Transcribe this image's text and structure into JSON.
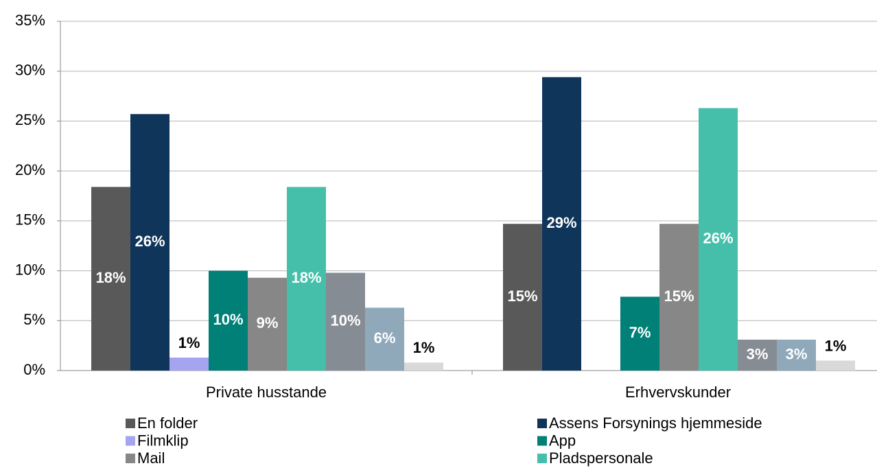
{
  "chart_data": {
    "type": "bar",
    "categories": [
      "Private husstande",
      "Erhvervskunder"
    ],
    "ylim": [
      0,
      35
    ],
    "yticks": [
      {
        "value": 0,
        "label": "0%"
      },
      {
        "value": 5,
        "label": "5%"
      },
      {
        "value": 10,
        "label": "10%"
      },
      {
        "value": 15,
        "label": "15%"
      },
      {
        "value": 20,
        "label": "20%"
      },
      {
        "value": 25,
        "label": "25%"
      },
      {
        "value": 30,
        "label": "30%"
      },
      {
        "value": 35,
        "label": "35%"
      }
    ],
    "grid": true,
    "series": [
      {
        "name": "En folder",
        "color": "#595959",
        "values": [
          18.4,
          14.7
        ],
        "value_labels": [
          "18%",
          "15%"
        ]
      },
      {
        "name": "Assens Forsynings hjemmeside",
        "color": "#10355a",
        "values": [
          25.7,
          29.4
        ],
        "value_labels": [
          "26%",
          "29%"
        ]
      },
      {
        "name": "Filmklip",
        "color": "#a4a4f0",
        "values": [
          1.3,
          null
        ],
        "value_labels": [
          "1%",
          null
        ]
      },
      {
        "name": "App",
        "color": "#008077",
        "values": [
          10,
          7.4
        ],
        "value_labels": [
          "10%",
          "7%"
        ]
      },
      {
        "name": "Mail",
        "color": "#878787",
        "values": [
          9.3,
          14.7
        ],
        "value_labels": [
          "9%",
          "15%"
        ]
      },
      {
        "name": "Pladspersonale",
        "color": "#45bfaa",
        "values": [
          18.4,
          26.3
        ],
        "value_labels": [
          "18%",
          "26%"
        ]
      },
      {
        "color": "#868c94",
        "values": [
          9.8,
          3.1
        ],
        "value_labels": [
          "10%",
          "3%"
        ]
      },
      {
        "color": "#8fa9bb",
        "values": [
          6.3,
          3.1
        ],
        "value_labels": [
          "6%",
          "3%"
        ]
      },
      {
        "color": "#d9d9d9",
        "values": [
          0.8,
          1.0
        ],
        "value_labels": [
          "1%",
          "1%"
        ]
      }
    ]
  }
}
